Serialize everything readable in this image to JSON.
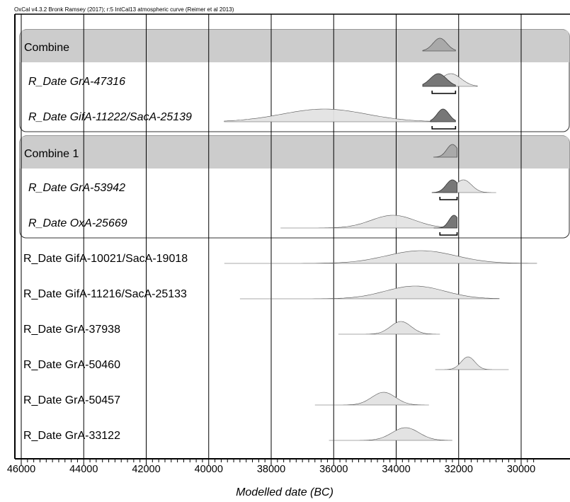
{
  "chart_data": {
    "type": "density",
    "credit": "OxCal v4.3.2 Bronk Ramsey (2017); r:5 IntCal13 atmospheric curve (Reimer et al 2013)",
    "xlabel": "Modelled date (BC)",
    "xlim": [
      46000,
      29600
    ],
    "x_ticks": [
      46000,
      44000,
      42000,
      40000,
      38000,
      36000,
      34000,
      32000,
      30000
    ],
    "x_tick_labels": [
      "46000",
      "44000",
      "42000",
      "40000",
      "38000",
      "36000",
      "34000",
      "32000",
      "30000"
    ],
    "gridlines": [
      46000,
      44000,
      42000,
      40000,
      38000,
      36000,
      34000,
      32000,
      30000
    ],
    "colors": {
      "prior": "#e3e3e3",
      "posterior": "#777777",
      "combine_fill": "#a9a9a9",
      "group_header": "#cccccc",
      "outline": "#555555"
    },
    "groups": [
      {
        "label": "Combine",
        "combined": {
          "mean": 32600,
          "sd": 220,
          "range": [
            33150,
            32100
          ]
        },
        "rows": [
          {
            "label": "R_Date GrA-47316",
            "italic": true,
            "prior": {
              "mean": 32250,
              "sd": 330,
              "range": [
                33150,
                31400
              ]
            },
            "posterior": {
              "mean": 32650,
              "sd": 260,
              "range": [
                33150,
                32100
              ]
            },
            "hpd": [
              32850,
              32100
            ]
          },
          {
            "label": "R_Date GifA-11222/SacA-25139",
            "italic": true,
            "prior": {
              "mean": 36300,
              "sd": 1350,
              "range": [
                39500,
                32700
              ]
            },
            "posterior": {
              "mean": 32500,
              "sd": 190,
              "range": [
                32900,
                32100
              ]
            },
            "hpd": [
              32850,
              32100
            ]
          }
        ]
      },
      {
        "label": "Combine 1",
        "combined": {
          "mean": 32200,
          "sd": 180,
          "range": [
            32800,
            32050
          ]
        },
        "rows": [
          {
            "label": "R_Date GrA-53942",
            "italic": true,
            "prior": {
              "mean": 31850,
              "sd": 260,
              "range": [
                32500,
                30800
              ]
            },
            "posterior": {
              "mean": 32200,
              "sd": 200,
              "range": [
                32850,
                32050
              ]
            },
            "hpd": [
              32600,
              32050
            ]
          },
          {
            "label": "R_Date OxA-25669",
            "italic": true,
            "prior": {
              "mean": 34100,
              "sd": 700,
              "range": [
                37700,
                32050
              ]
            },
            "posterior": {
              "mean": 32150,
              "sd": 160,
              "range": [
                32800,
                32050
              ]
            },
            "hpd": [
              32600,
              32050
            ]
          }
        ]
      }
    ],
    "rows": [
      {
        "label": "R_Date GifA-10021/SacA-19018",
        "prior": {
          "mean": 33200,
          "sd": 1100,
          "range": [
            39500,
            29500
          ]
        }
      },
      {
        "label": "R_Date GifA-11216/SacA-25133",
        "prior": {
          "mean": 33400,
          "sd": 950,
          "range": [
            39000,
            30700
          ]
        }
      },
      {
        "label": "R_Date GrA-37938",
        "prior": {
          "mean": 33850,
          "sd": 330,
          "range": [
            35850,
            32600
          ]
        }
      },
      {
        "label": "R_Date GrA-50460",
        "prior": {
          "mean": 31700,
          "sd": 220,
          "range": [
            32750,
            30400
          ]
        }
      },
      {
        "label": "R_Date GrA-50457",
        "prior": {
          "mean": 34400,
          "sd": 380,
          "range": [
            36600,
            32950
          ]
        }
      },
      {
        "label": "R_Date GrA-33122",
        "prior": {
          "mean": 33700,
          "sd": 430,
          "range": [
            36150,
            32200
          ]
        }
      }
    ]
  }
}
